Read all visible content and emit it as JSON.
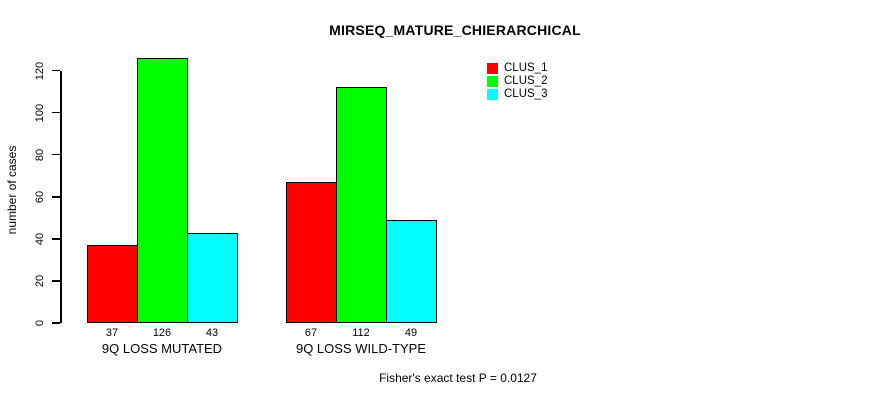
{
  "chart_data": {
    "type": "bar",
    "title": "MIRSEQ_MATURE_CHIERARCHICAL",
    "xlabel": "",
    "ylabel": "number of cases",
    "categories": [
      "9Q LOSS MUTATED",
      "9Q LOSS WILD-TYPE"
    ],
    "series": [
      {
        "name": "CLUS_1",
        "color": "#ff0000",
        "values": [
          37,
          67
        ]
      },
      {
        "name": "CLUS_2",
        "color": "#00ff00",
        "values": [
          126,
          112
        ]
      },
      {
        "name": "CLUS_3",
        "color": "#00ffff",
        "values": [
          43,
          49
        ]
      }
    ],
    "yticks": [
      0,
      20,
      40,
      60,
      80,
      100,
      120
    ],
    "ylim": [
      0,
      126
    ],
    "grid": false,
    "legend_position": "top-right",
    "bar_value_labels_shown": true,
    "annotation": "Fisher's exact test P = 0.0127"
  }
}
